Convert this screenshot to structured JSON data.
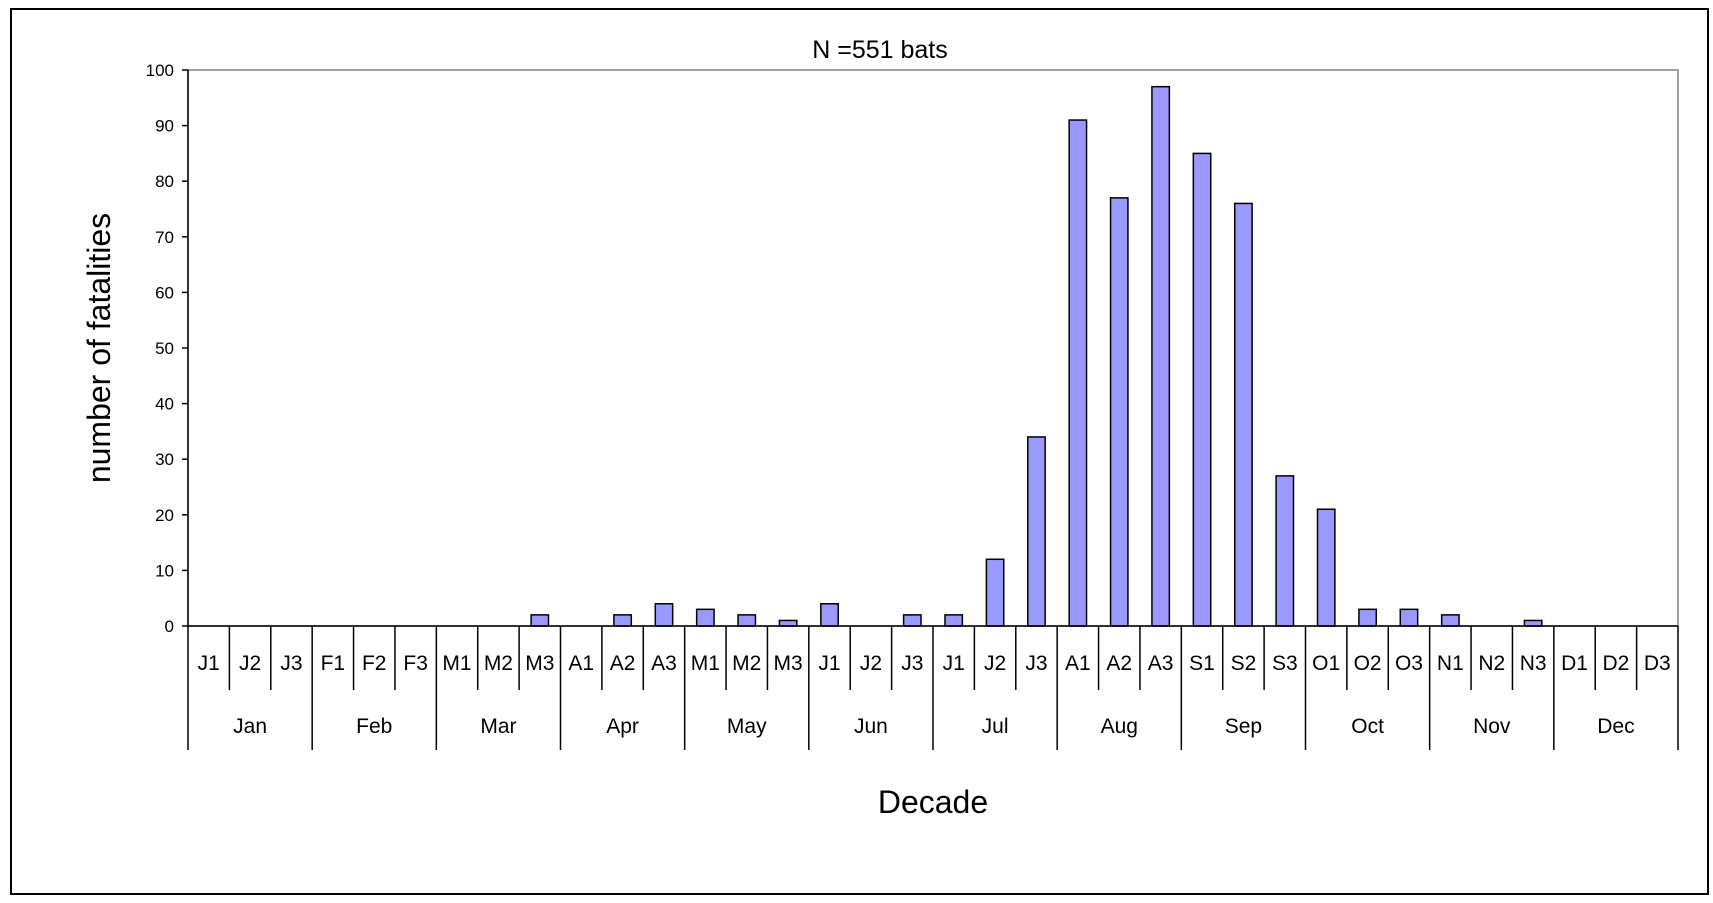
{
  "chart_data": {
    "type": "bar",
    "title": "N =551 bats",
    "xlabel": "Decade",
    "ylabel": "number of fatalities",
    "ylim": [
      0,
      100
    ],
    "y_ticks": [
      0,
      10,
      20,
      30,
      40,
      50,
      60,
      70,
      80,
      90,
      100
    ],
    "grid": false,
    "legend": "none",
    "colors": {
      "bar_fill": "#9999ff",
      "bar_stroke": "#000000",
      "plot_border": "#808080"
    },
    "categories": [
      "J1",
      "J2",
      "J3",
      "F1",
      "F2",
      "F3",
      "M1",
      "M2",
      "M3",
      "A1",
      "A2",
      "A3",
      "M1",
      "M2",
      "M3",
      "J1",
      "J2",
      "J3",
      "J1",
      "J2",
      "J3",
      "A1",
      "A2",
      "A3",
      "S1",
      "S2",
      "S3",
      "O1",
      "O2",
      "O3",
      "N1",
      "N2",
      "N3",
      "D1",
      "D2",
      "D3"
    ],
    "months": [
      "Jan",
      "Feb",
      "Mar",
      "Apr",
      "May",
      "Jun",
      "Jul",
      "Aug",
      "Sep",
      "Oct",
      "Nov",
      "Dec"
    ],
    "values": [
      0,
      0,
      0,
      0,
      0,
      0,
      0,
      0,
      2,
      0,
      2,
      4,
      3,
      2,
      1,
      4,
      0,
      2,
      2,
      12,
      34,
      91,
      77,
      97,
      85,
      76,
      27,
      21,
      3,
      3,
      2,
      0,
      1,
      0,
      0,
      0
    ]
  }
}
